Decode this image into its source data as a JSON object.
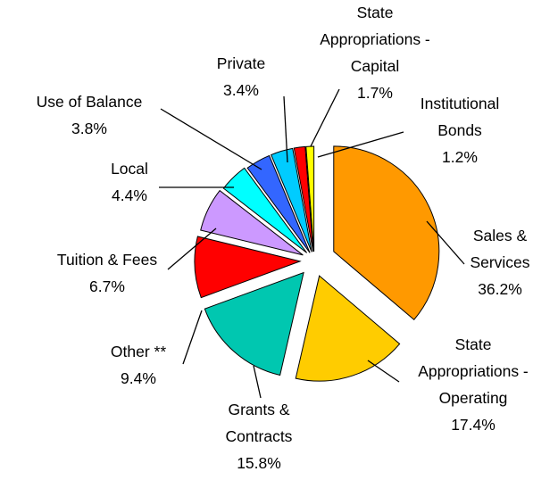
{
  "chart_data": {
    "type": "pie",
    "categories": [
      "Sales &\nServices",
      "State\nAppropriations -\nOperating",
      "Grants &\nContracts",
      "Other **",
      "Tuition & Fees",
      "Local",
      "Use of Balance",
      "Private",
      "State\nAppropriations -\nCapital",
      "Institutional\nBonds"
    ],
    "values": [
      36.2,
      17.4,
      15.8,
      9.4,
      6.7,
      4.4,
      3.8,
      3.4,
      1.7,
      1.2
    ],
    "value_labels": [
      "36.2%",
      "17.4%",
      "15.8%",
      "9.4%",
      "6.7%",
      "4.4%",
      "3.8%",
      "3.4%",
      "1.7%",
      "1.2%"
    ],
    "colors": [
      "#ff9900",
      "#ffcc00",
      "#00c7b0",
      "#ff0000",
      "#cc99ff",
      "#00ffff",
      "#3366ff",
      "#00ccff",
      "#ff0000",
      "#ffff00"
    ]
  }
}
